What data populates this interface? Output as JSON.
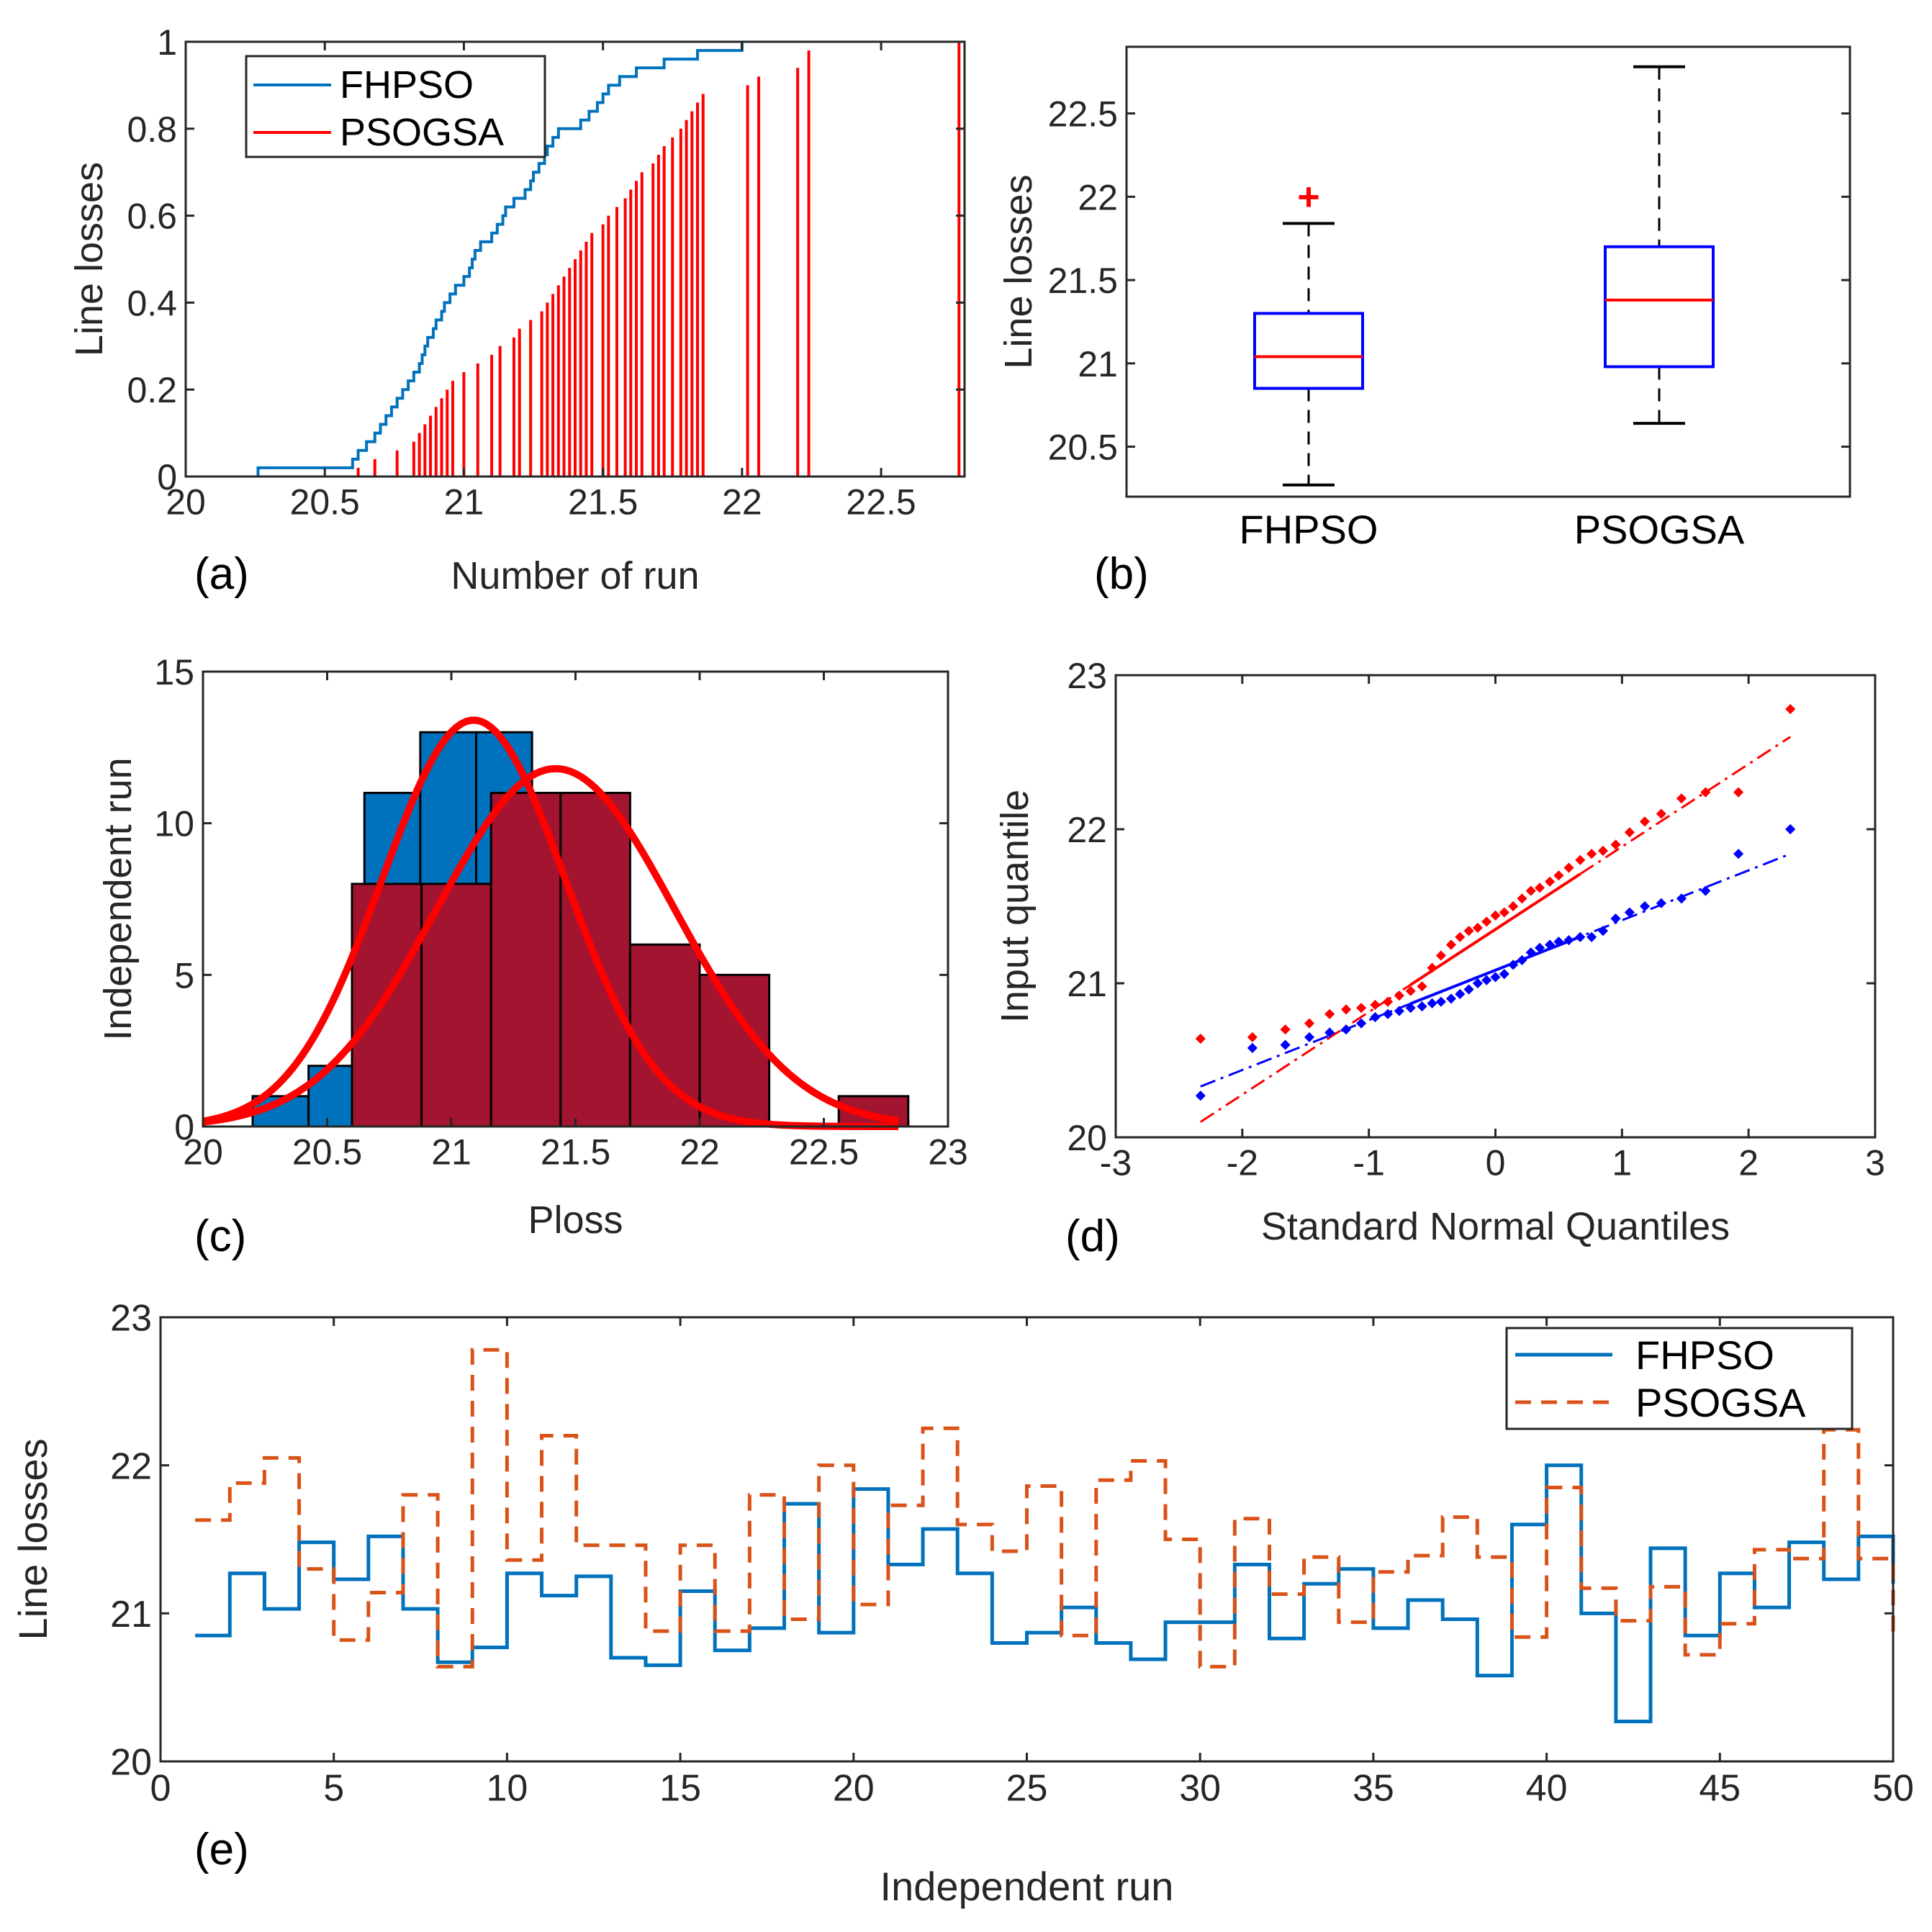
{
  "colors": {
    "fhpso_blue": "#0072BD",
    "psogsa_red": "#FF0000",
    "psogsa_orange": "#D95319",
    "hist_blue": "#0072BD",
    "hist_maroon": "#A2142F",
    "box_blue": "#0000FF",
    "qq_blue": "#0000FF",
    "qq_red": "#FF0000"
  },
  "chart_data": [
    {
      "id": "a",
      "panel_label": "(a)",
      "type": "line",
      "title": "",
      "xlabel": "Number of run",
      "ylabel": "Line losses",
      "xlim": [
        20,
        22.8
      ],
      "ylim": [
        0,
        1
      ],
      "xticks": [
        "20",
        "20.5",
        "21",
        "21.5",
        "22",
        "22.5"
      ],
      "xtick_values": [
        20,
        20.5,
        21,
        21.5,
        22,
        22.5
      ],
      "yticks": [
        "0",
        "0.2",
        "0.4",
        "0.6",
        "0.8",
        "1"
      ],
      "ytick_values": [
        0,
        0.2,
        0.4,
        0.6,
        0.8,
        1
      ],
      "legend": [
        "FHPSO",
        "PSOGSA"
      ],
      "series": [
        {
          "name": "FHPSO",
          "style": "ecdf-step",
          "values": [
            20.26,
            20.6,
            20.62,
            20.65,
            20.68,
            20.7,
            20.72,
            20.74,
            20.76,
            20.78,
            20.8,
            20.82,
            20.84,
            20.85,
            20.86,
            20.87,
            20.89,
            20.9,
            20.92,
            20.93,
            20.95,
            20.97,
            21.0,
            21.02,
            21.03,
            21.04,
            21.06,
            21.1,
            21.12,
            21.14,
            21.15,
            21.18,
            21.22,
            21.24,
            21.25,
            21.27,
            21.29,
            21.3,
            21.32,
            21.34,
            21.42,
            21.45,
            21.48,
            21.5,
            21.52,
            21.56,
            21.62,
            21.72,
            21.84,
            22.0
          ]
        },
        {
          "name": "PSOGSA",
          "style": "stem",
          "x": [
            20.62,
            20.68,
            20.76,
            20.82,
            20.84,
            20.86,
            20.88,
            20.9,
            20.92,
            20.94,
            20.96,
            21.0,
            21.05,
            21.1,
            21.13,
            21.18,
            21.2,
            21.24,
            21.28,
            21.3,
            21.32,
            21.34,
            21.36,
            21.38,
            21.4,
            21.42,
            21.44,
            21.46,
            21.5,
            21.52,
            21.55,
            21.58,
            21.6,
            21.62,
            21.64,
            21.68,
            21.7,
            21.72,
            21.75,
            21.78,
            21.8,
            21.82,
            21.84,
            21.86,
            22.02,
            22.06,
            22.2,
            22.24,
            22.78
          ],
          "y": [
            0.02,
            0.04,
            0.06,
            0.08,
            0.1,
            0.12,
            0.14,
            0.16,
            0.18,
            0.2,
            0.22,
            0.24,
            0.26,
            0.28,
            0.3,
            0.32,
            0.34,
            0.36,
            0.38,
            0.4,
            0.42,
            0.44,
            0.46,
            0.48,
            0.5,
            0.52,
            0.54,
            0.56,
            0.58,
            0.6,
            0.62,
            0.64,
            0.66,
            0.68,
            0.7,
            0.72,
            0.74,
            0.76,
            0.78,
            0.8,
            0.82,
            0.84,
            0.86,
            0.88,
            0.9,
            0.92,
            0.94,
            0.98,
            1.0
          ]
        }
      ]
    },
    {
      "id": "b",
      "panel_label": "(b)",
      "type": "box",
      "title": "",
      "xlabel": "",
      "ylabel": "Line losses",
      "ylim": [
        20.2,
        22.9
      ],
      "yticks": [
        "20.5",
        "21",
        "21.5",
        "22",
        "22.5"
      ],
      "ytick_values": [
        20.5,
        21,
        21.5,
        22,
        22.5
      ],
      "categories": [
        "FHPSO",
        "PSOGSA"
      ],
      "series": [
        {
          "name": "FHPSO",
          "whisker_low": 20.27,
          "q1": 20.85,
          "median": 21.04,
          "q3": 21.3,
          "whisker_high": 21.84,
          "outliers": [
            22.0
          ]
        },
        {
          "name": "PSOGSA",
          "whisker_low": 20.64,
          "q1": 20.98,
          "median": 21.38,
          "q3": 21.7,
          "whisker_high": 22.78,
          "outliers": []
        }
      ]
    },
    {
      "id": "c",
      "panel_label": "(c)",
      "type": "bar",
      "title": "",
      "xlabel": "Ploss",
      "ylabel": "Independent run",
      "xlim": [
        20,
        23
      ],
      "ylim": [
        0,
        15
      ],
      "xticks": [
        "20",
        "20.5",
        "21",
        "21.5",
        "22",
        "22.5",
        "23"
      ],
      "xtick_values": [
        20,
        20.5,
        21,
        21.5,
        22,
        22.5,
        23
      ],
      "yticks": [
        "0",
        "5",
        "10",
        "15"
      ],
      "ytick_values": [
        0,
        5,
        10,
        15
      ],
      "series": [
        {
          "name": "FHPSO",
          "bin_edges": [
            20.2,
            20.425,
            20.65,
            20.875,
            21.1,
            21.325,
            21.55,
            21.775
          ],
          "counts": [
            1,
            2,
            11,
            13,
            13,
            4,
            4
          ],
          "fit_mean": 21.09,
          "fit_std": 0.37
        },
        {
          "name": "PSOGSA",
          "bin_edges": [
            20.6,
            20.88,
            21.16,
            21.44,
            21.72,
            22.0,
            22.28,
            22.56,
            22.84
          ],
          "counts": [
            8,
            8,
            11,
            11,
            6,
            5,
            0,
            1
          ],
          "fit_mean": 21.42,
          "fit_std": 0.48
        }
      ],
      "fit_curve_peaks": [
        13.4,
        11.8
      ],
      "fit_curve_range": [
        20.0,
        22.8
      ]
    },
    {
      "id": "d",
      "panel_label": "(d)",
      "type": "scatter",
      "title": "",
      "xlabel": "Standard Normal Quantiles",
      "ylabel": "Input quantile",
      "xlim": [
        -3,
        3
      ],
      "ylim": [
        20,
        23
      ],
      "xticks": [
        "-3",
        "-2",
        "-1",
        "0",
        "1",
        "2",
        "3"
      ],
      "xtick_values": [
        -3,
        -2,
        -1,
        0,
        1,
        2,
        3
      ],
      "yticks": [
        "20",
        "21",
        "22",
        "23"
      ],
      "ytick_values": [
        20,
        21,
        22,
        23
      ],
      "series": [
        {
          "name": "FHPSO",
          "marker": "+",
          "x": [
            -2.33,
            -1.92,
            -1.66,
            -1.47,
            -1.31,
            -1.18,
            -1.06,
            -0.95,
            -0.85,
            -0.76,
            -0.67,
            -0.58,
            -0.5,
            -0.43,
            -0.35,
            -0.28,
            -0.21,
            -0.14,
            -0.07,
            0.0,
            0.07,
            0.14,
            0.21,
            0.28,
            0.35,
            0.43,
            0.5,
            0.58,
            0.67,
            0.76,
            0.85,
            0.95,
            1.06,
            1.18,
            1.31,
            1.47,
            1.66,
            1.92,
            2.33
          ],
          "y": [
            20.27,
            20.58,
            20.6,
            20.65,
            20.68,
            20.7,
            20.74,
            20.78,
            20.8,
            20.82,
            20.84,
            20.85,
            20.87,
            20.88,
            20.9,
            20.93,
            20.96,
            21.0,
            21.02,
            21.04,
            21.06,
            21.12,
            21.15,
            21.2,
            21.23,
            21.25,
            21.27,
            21.28,
            21.3,
            21.3,
            21.34,
            21.42,
            21.46,
            21.5,
            21.52,
            21.55,
            21.6,
            21.84,
            22.0
          ]
        },
        {
          "name": "PSOGSA",
          "marker": "+",
          "x": [
            -2.33,
            -1.92,
            -1.66,
            -1.47,
            -1.31,
            -1.18,
            -1.06,
            -0.95,
            -0.85,
            -0.76,
            -0.67,
            -0.58,
            -0.5,
            -0.43,
            -0.35,
            -0.28,
            -0.21,
            -0.14,
            -0.07,
            0.0,
            0.07,
            0.14,
            0.21,
            0.28,
            0.35,
            0.43,
            0.5,
            0.58,
            0.67,
            0.76,
            0.85,
            0.95,
            1.06,
            1.18,
            1.31,
            1.47,
            1.66,
            1.92,
            2.33
          ],
          "y": [
            20.64,
            20.65,
            20.7,
            20.74,
            20.8,
            20.83,
            20.84,
            20.86,
            20.88,
            20.92,
            20.95,
            20.98,
            21.1,
            21.18,
            21.25,
            21.3,
            21.34,
            21.36,
            21.4,
            21.44,
            21.46,
            21.5,
            21.55,
            21.6,
            21.62,
            21.66,
            21.7,
            21.75,
            21.8,
            21.84,
            21.86,
            21.9,
            21.98,
            22.05,
            22.1,
            22.2,
            22.24,
            22.24,
            22.78
          ]
        }
      ],
      "reference_lines": [
        {
          "name": "FHPSO",
          "x": [
            -2.33,
            2.33
          ],
          "y": [
            20.33,
            21.84
          ]
        },
        {
          "name": "PSOGSA",
          "x": [
            -2.33,
            2.33
          ],
          "y": [
            20.1,
            22.6
          ]
        }
      ]
    },
    {
      "id": "e",
      "panel_label": "(e)",
      "type": "line",
      "title": "",
      "xlabel": "Independent run",
      "ylabel": "Line losses",
      "xlim": [
        0,
        50
      ],
      "ylim": [
        20,
        23
      ],
      "xticks": [
        "0",
        "5",
        "10",
        "15",
        "20",
        "25",
        "30",
        "35",
        "40",
        "45",
        "50"
      ],
      "xtick_values": [
        0,
        5,
        10,
        15,
        20,
        25,
        30,
        35,
        40,
        45,
        50
      ],
      "yticks": [
        "20",
        "21",
        "22",
        "23"
      ],
      "ytick_values": [
        20,
        21,
        22,
        23
      ],
      "legend": [
        "FHPSO",
        "PSOGSA"
      ],
      "x": [
        1,
        2,
        3,
        4,
        5,
        6,
        7,
        8,
        9,
        10,
        11,
        12,
        13,
        14,
        15,
        16,
        17,
        18,
        19,
        20,
        21,
        22,
        23,
        24,
        25,
        26,
        27,
        28,
        29,
        30,
        31,
        32,
        33,
        34,
        35,
        36,
        37,
        38,
        39,
        40,
        41,
        42,
        43,
        44,
        45,
        46,
        47,
        48,
        49,
        50
      ],
      "series": [
        {
          "name": "FHPSO",
          "style": "solid-step",
          "values": [
            20.85,
            21.27,
            21.03,
            21.48,
            21.23,
            21.52,
            21.03,
            20.67,
            20.77,
            21.27,
            21.12,
            21.25,
            20.7,
            20.65,
            21.15,
            20.75,
            20.9,
            21.74,
            20.87,
            21.84,
            21.33,
            21.57,
            21.27,
            20.8,
            20.87,
            21.04,
            20.8,
            20.69,
            20.94,
            20.94,
            21.33,
            20.83,
            21.2,
            21.3,
            20.9,
            21.09,
            20.96,
            20.58,
            21.6,
            22.0,
            21.0,
            20.27,
            21.44,
            20.85,
            21.27,
            21.04,
            21.48,
            21.23,
            21.52,
            21.2
          ]
        },
        {
          "name": "PSOGSA",
          "style": "dashed-step",
          "values": [
            21.63,
            21.88,
            22.05,
            21.3,
            20.82,
            21.14,
            21.8,
            20.64,
            22.78,
            21.36,
            22.2,
            21.46,
            21.46,
            20.88,
            21.46,
            20.88,
            21.8,
            20.96,
            22.0,
            21.06,
            21.73,
            22.25,
            21.6,
            21.42,
            21.86,
            20.85,
            21.9,
            22.03,
            21.5,
            20.64,
            21.64,
            21.13,
            21.38,
            20.94,
            21.28,
            21.39,
            21.65,
            21.38,
            20.84,
            21.85,
            21.17,
            20.95,
            21.18,
            20.72,
            20.93,
            21.43,
            21.37,
            22.24,
            21.37,
            20.84
          ]
        }
      ]
    }
  ]
}
